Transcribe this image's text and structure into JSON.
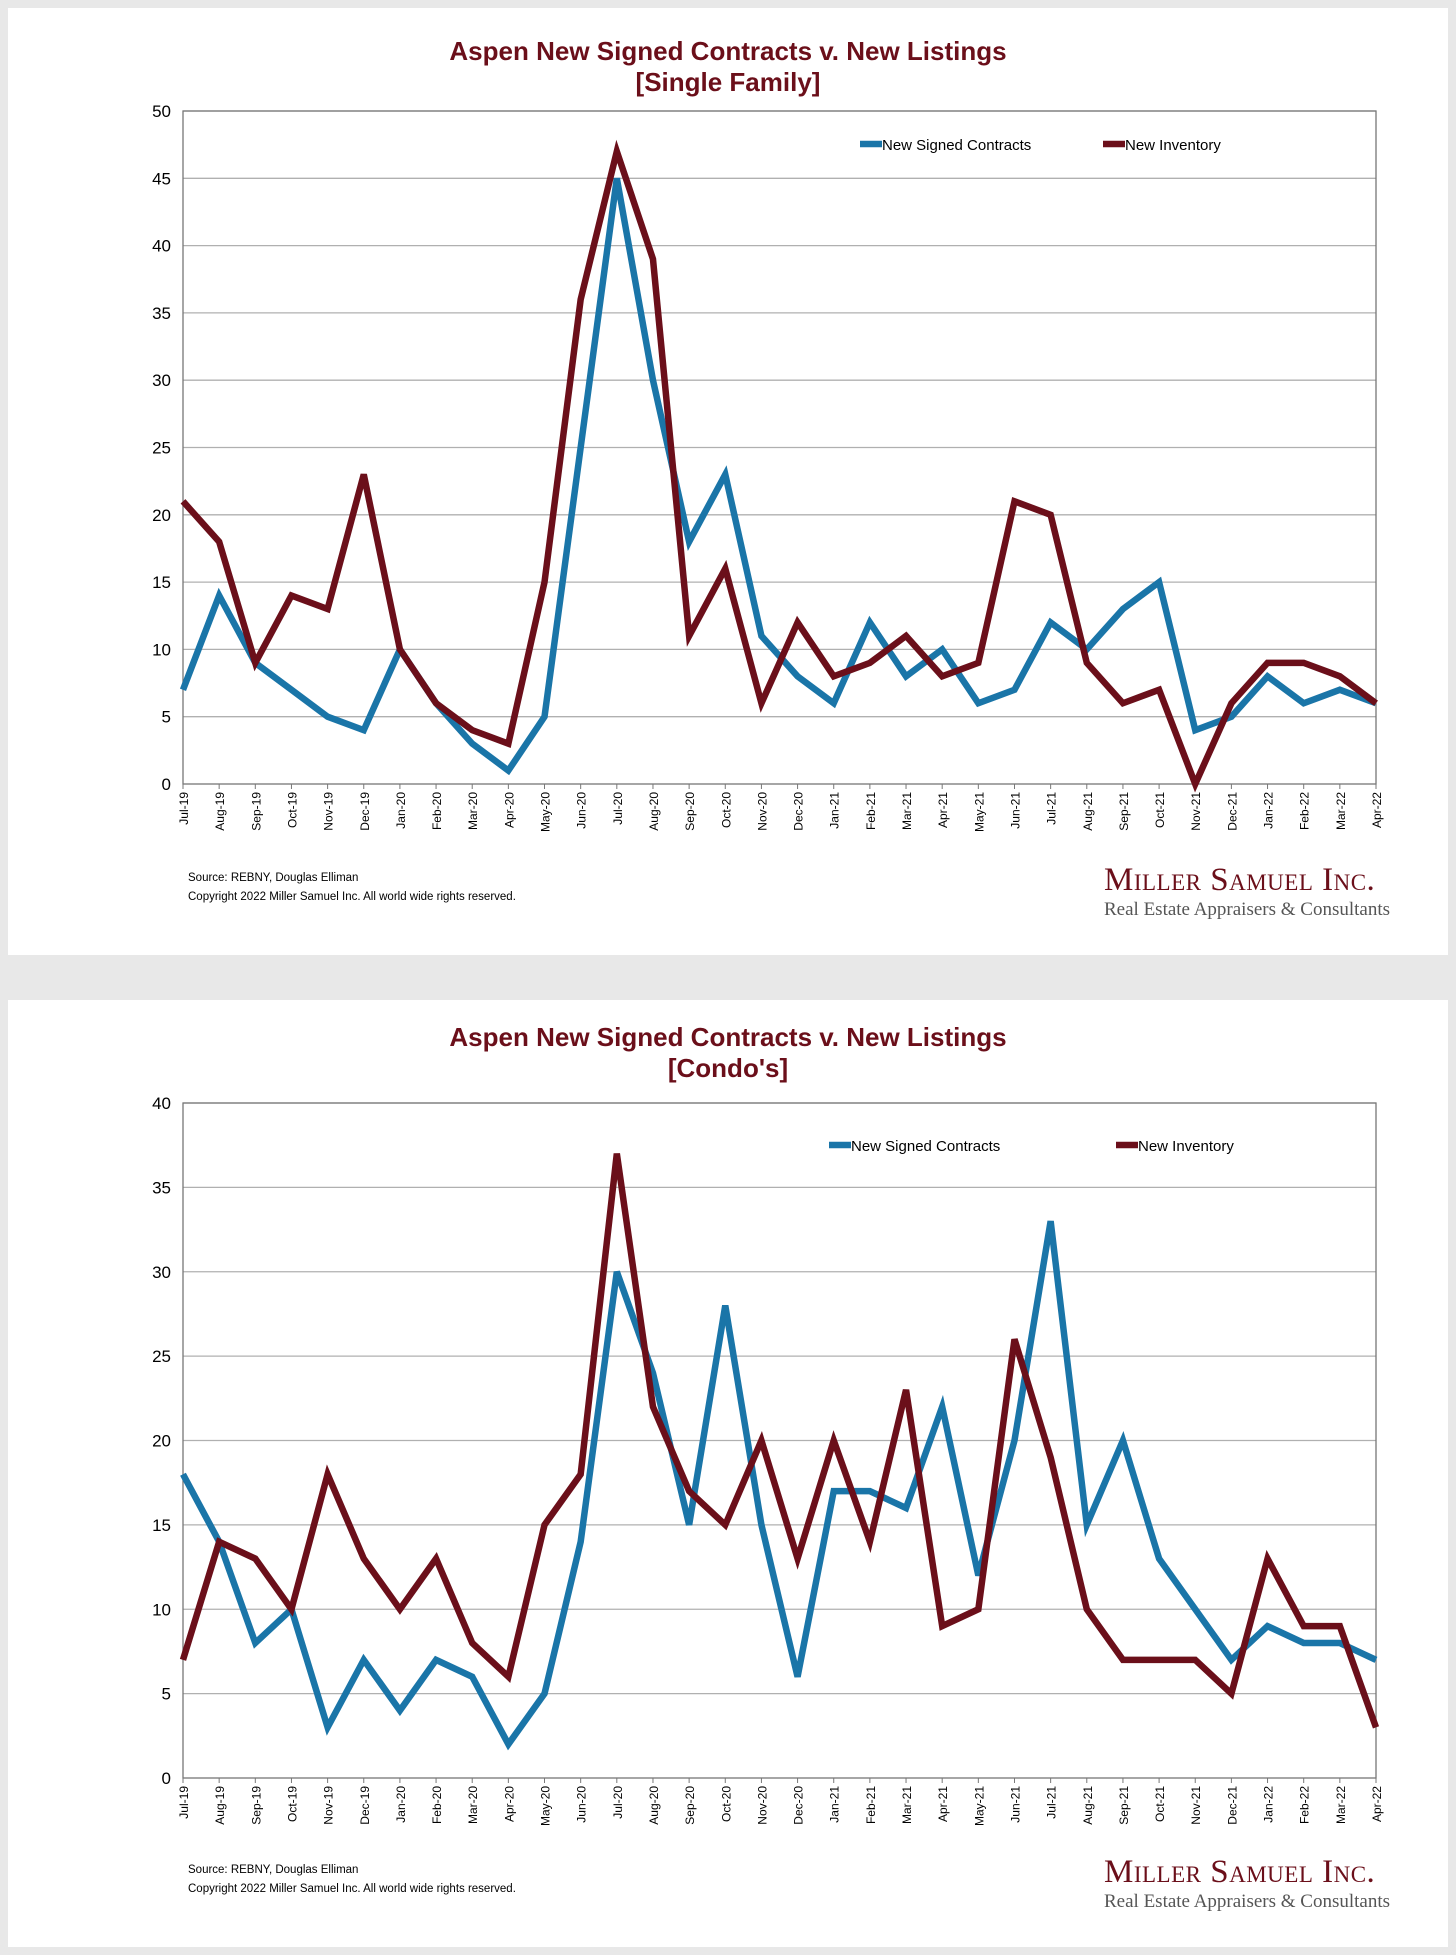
{
  "colors": {
    "signed": "#1a75a8",
    "inventory": "#6b0f1a",
    "grid": "#b0b0b0"
  },
  "charts": [
    {
      "title_line1": "Aspen New Signed Contracts v. New Listings",
      "title_line2": "[Single Family]",
      "source": "Source: REBNY, Douglas Elliman",
      "copyright": "Copyright 2022 Miller Samuel Inc.  All world wide rights reserved.",
      "logo_name": "Miller Samuel Inc.",
      "logo_tagline": "Real Estate Appraisers & Consultants"
    },
    {
      "title_line1": "Aspen New Signed Contracts v. New Listings",
      "title_line2": "[Condo's]",
      "source": "Source: REBNY, Douglas Elliman",
      "copyright": "Copyright 2022 Miller Samuel Inc.  All world wide rights reserved.",
      "logo_name": "Miller Samuel Inc.",
      "logo_tagline": "Real Estate Appraisers & Consultants"
    }
  ],
  "chart_data": [
    {
      "type": "line",
      "title": "Aspen New Signed Contracts v. New Listings [Single Family]",
      "xlabel": "",
      "ylabel": "",
      "ylim": [
        0,
        50
      ],
      "yticks": [
        0,
        5,
        10,
        15,
        20,
        25,
        30,
        35,
        40,
        45,
        50
      ],
      "grid": true,
      "legend": "top-right",
      "categories": [
        "Jul-19",
        "Aug-19",
        "Sep-19",
        "Oct-19",
        "Nov-19",
        "Dec-19",
        "Jan-20",
        "Feb-20",
        "Mar-20",
        "Apr-20",
        "May-20",
        "Jun-20",
        "Jul-20",
        "Aug-20",
        "Sep-20",
        "Oct-20",
        "Nov-20",
        "Dec-20",
        "Jan-21",
        "Feb-21",
        "Mar-21",
        "Apr-21",
        "May-21",
        "Jun-21",
        "Jul-21",
        "Aug-21",
        "Sep-21",
        "Oct-21",
        "Nov-21",
        "Dec-21",
        "Jan-22",
        "Feb-22",
        "Mar-22",
        "Apr-22"
      ],
      "series": [
        {
          "name": "New Signed Contracts",
          "values": [
            7,
            14,
            9,
            7,
            5,
            4,
            10,
            6,
            3,
            1,
            5,
            25,
            45,
            30,
            18,
            23,
            11,
            8,
            6,
            12,
            8,
            10,
            6,
            7,
            12,
            10,
            13,
            15,
            4,
            5,
            8,
            6,
            7,
            6
          ]
        },
        {
          "name": "New Inventory",
          "values": [
            21,
            18,
            9,
            14,
            13,
            23,
            10,
            6,
            4,
            3,
            15,
            36,
            47,
            39,
            11,
            16,
            6,
            12,
            8,
            9,
            11,
            8,
            9,
            21,
            20,
            9,
            6,
            7,
            0,
            6,
            9,
            9,
            8,
            6
          ]
        }
      ]
    },
    {
      "type": "line",
      "title": "Aspen New Signed Contracts v. New Listings [Condo's]",
      "xlabel": "",
      "ylabel": "",
      "ylim": [
        0,
        40
      ],
      "yticks": [
        0,
        5,
        10,
        15,
        20,
        25,
        30,
        35,
        40
      ],
      "grid": true,
      "legend": "top-right",
      "categories": [
        "Jul-19",
        "Aug-19",
        "Sep-19",
        "Oct-19",
        "Nov-19",
        "Dec-19",
        "Jan-20",
        "Feb-20",
        "Mar-20",
        "Apr-20",
        "May-20",
        "Jun-20",
        "Jul-20",
        "Aug-20",
        "Sep-20",
        "Oct-20",
        "Nov-20",
        "Dec-20",
        "Jan-21",
        "Feb-21",
        "Mar-21",
        "Apr-21",
        "May-21",
        "Jun-21",
        "Jul-21",
        "Aug-21",
        "Sep-21",
        "Oct-21",
        "Nov-21",
        "Dec-21",
        "Jan-22",
        "Feb-22",
        "Mar-22",
        "Apr-22"
      ],
      "series": [
        {
          "name": "New Signed Contracts",
          "values": [
            18,
            14,
            8,
            10,
            3,
            7,
            4,
            7,
            6,
            2,
            5,
            14,
            30,
            24,
            15,
            28,
            15,
            6,
            17,
            17,
            16,
            22,
            12,
            20,
            33,
            15,
            20,
            13,
            10,
            7,
            9,
            8,
            8,
            7
          ]
        },
        {
          "name": "New Inventory",
          "values": [
            7,
            14,
            13,
            10,
            18,
            13,
            10,
            13,
            8,
            6,
            15,
            18,
            37,
            22,
            17,
            15,
            20,
            13,
            20,
            14,
            23,
            9,
            10,
            26,
            19,
            10,
            7,
            7,
            7,
            5,
            13,
            9,
            9,
            3
          ]
        }
      ]
    }
  ]
}
